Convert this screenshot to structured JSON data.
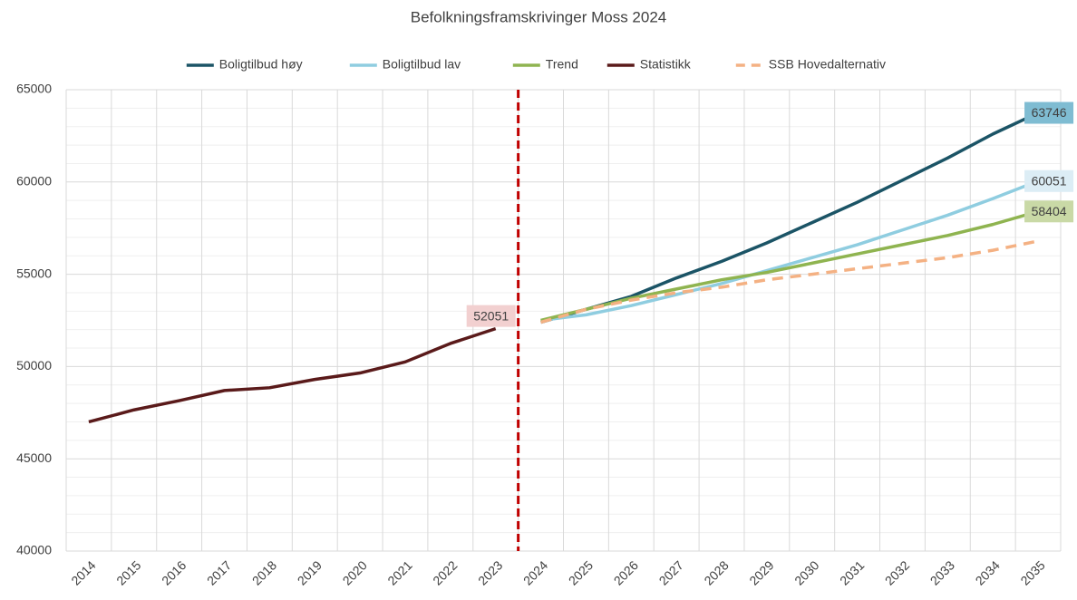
{
  "chart_data": {
    "type": "line",
    "title": "Befolkningsframskrivinger Moss 2024",
    "categories": [
      "2014",
      "2015",
      "2016",
      "2017",
      "2018",
      "2019",
      "2020",
      "2021",
      "2022",
      "2023",
      "2024",
      "2025",
      "2026",
      "2027",
      "2028",
      "2029",
      "2030",
      "2031",
      "2032",
      "2033",
      "2034",
      "2035"
    ],
    "series": [
      {
        "name": "Boligtilbud høy",
        "color": "#1b5466",
        "dash": false,
        "data_labels": "last",
        "label_fill": "#7fbcd2",
        "values": [
          null,
          null,
          null,
          null,
          null,
          null,
          null,
          null,
          null,
          null,
          52400,
          53100,
          53800,
          54800,
          55700,
          56700,
          57800,
          58900,
          60100,
          61300,
          62600,
          63746
        ]
      },
      {
        "name": "Boligtilbud lav",
        "color": "#8fcde0",
        "dash": false,
        "data_labels": "last",
        "label_fill": "#dcedf5",
        "values": [
          null,
          null,
          null,
          null,
          null,
          null,
          null,
          null,
          null,
          null,
          52500,
          52800,
          53300,
          53900,
          54500,
          55200,
          55900,
          56600,
          57400,
          58200,
          59100,
          60051
        ]
      },
      {
        "name": "Trend",
        "color": "#8fb450",
        "dash": false,
        "data_labels": "last",
        "label_fill": "#c9d9a6",
        "values": [
          null,
          null,
          null,
          null,
          null,
          null,
          null,
          null,
          null,
          null,
          52500,
          53100,
          53700,
          54200,
          54700,
          55100,
          55600,
          56100,
          56600,
          57100,
          57700,
          58404
        ]
      },
      {
        "name": "Statistikk",
        "color": "#5a1a1a",
        "dash": false,
        "data_labels": "last",
        "label_fill": "#f2d0d0",
        "values": [
          47000,
          47650,
          48150,
          48700,
          48850,
          49300,
          49650,
          50250,
          51250,
          52051,
          null,
          null,
          null,
          null,
          null,
          null,
          null,
          null,
          null,
          null,
          null,
          null
        ]
      },
      {
        "name": "SSB Hovedalternativ",
        "color": "#f4b183",
        "dash": true,
        "values": [
          null,
          null,
          null,
          null,
          null,
          null,
          null,
          null,
          null,
          null,
          52400,
          53100,
          53600,
          54000,
          54300,
          54700,
          55000,
          55300,
          55600,
          55900,
          56300,
          56800
        ]
      }
    ],
    "ylim": [
      40000,
      65000
    ],
    "yticks": [
      40000,
      45000,
      50000,
      55000,
      60000,
      65000
    ],
    "grid": true,
    "legend": "top",
    "forecast_start": "2024",
    "forecast_line_color": "#c00000"
  }
}
